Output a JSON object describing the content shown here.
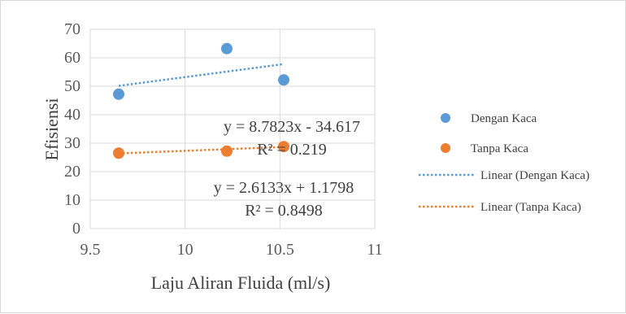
{
  "chart_data": {
    "type": "scatter",
    "title": "",
    "xlabel": "Laju Aliran Fluida (ml/s)",
    "ylabel": "Efisiensi",
    "xlim": [
      9.5,
      11
    ],
    "ylim": [
      0,
      70
    ],
    "xticks": [
      "9.5",
      "10",
      "10.5",
      "11"
    ],
    "yticks": [
      "0",
      "10",
      "20",
      "30",
      "40",
      "50",
      "60",
      "70"
    ],
    "grid": true,
    "legend_position": "right",
    "series": [
      {
        "name": "Dengan Kaca",
        "color": "#5b9bd5",
        "points": [
          {
            "x": 9.65,
            "y": 47.2
          },
          {
            "x": 10.22,
            "y": 63.2
          },
          {
            "x": 10.52,
            "y": 52.2
          }
        ],
        "trendline": {
          "label": "Linear (Dengan Kaca)",
          "slope": 8.7823,
          "intercept": -34.617,
          "x_range": [
            9.65,
            10.52
          ],
          "equation": "y = 8.7823x - 34.617",
          "r_squared": "R² = 0.219"
        }
      },
      {
        "name": "Tanpa Kaca",
        "color": "#ed7d31",
        "points": [
          {
            "x": 9.65,
            "y": 26.5
          },
          {
            "x": 10.22,
            "y": 27.2
          },
          {
            "x": 10.52,
            "y": 28.8
          }
        ],
        "trendline": {
          "label": "Linear (Tanpa Kaca)",
          "slope": 2.6133,
          "intercept": 1.1798,
          "x_range": [
            9.65,
            10.52
          ],
          "equation": "y = 2.6133x + 1.1798",
          "r_squared": "R² = 0.8498"
        }
      }
    ]
  }
}
